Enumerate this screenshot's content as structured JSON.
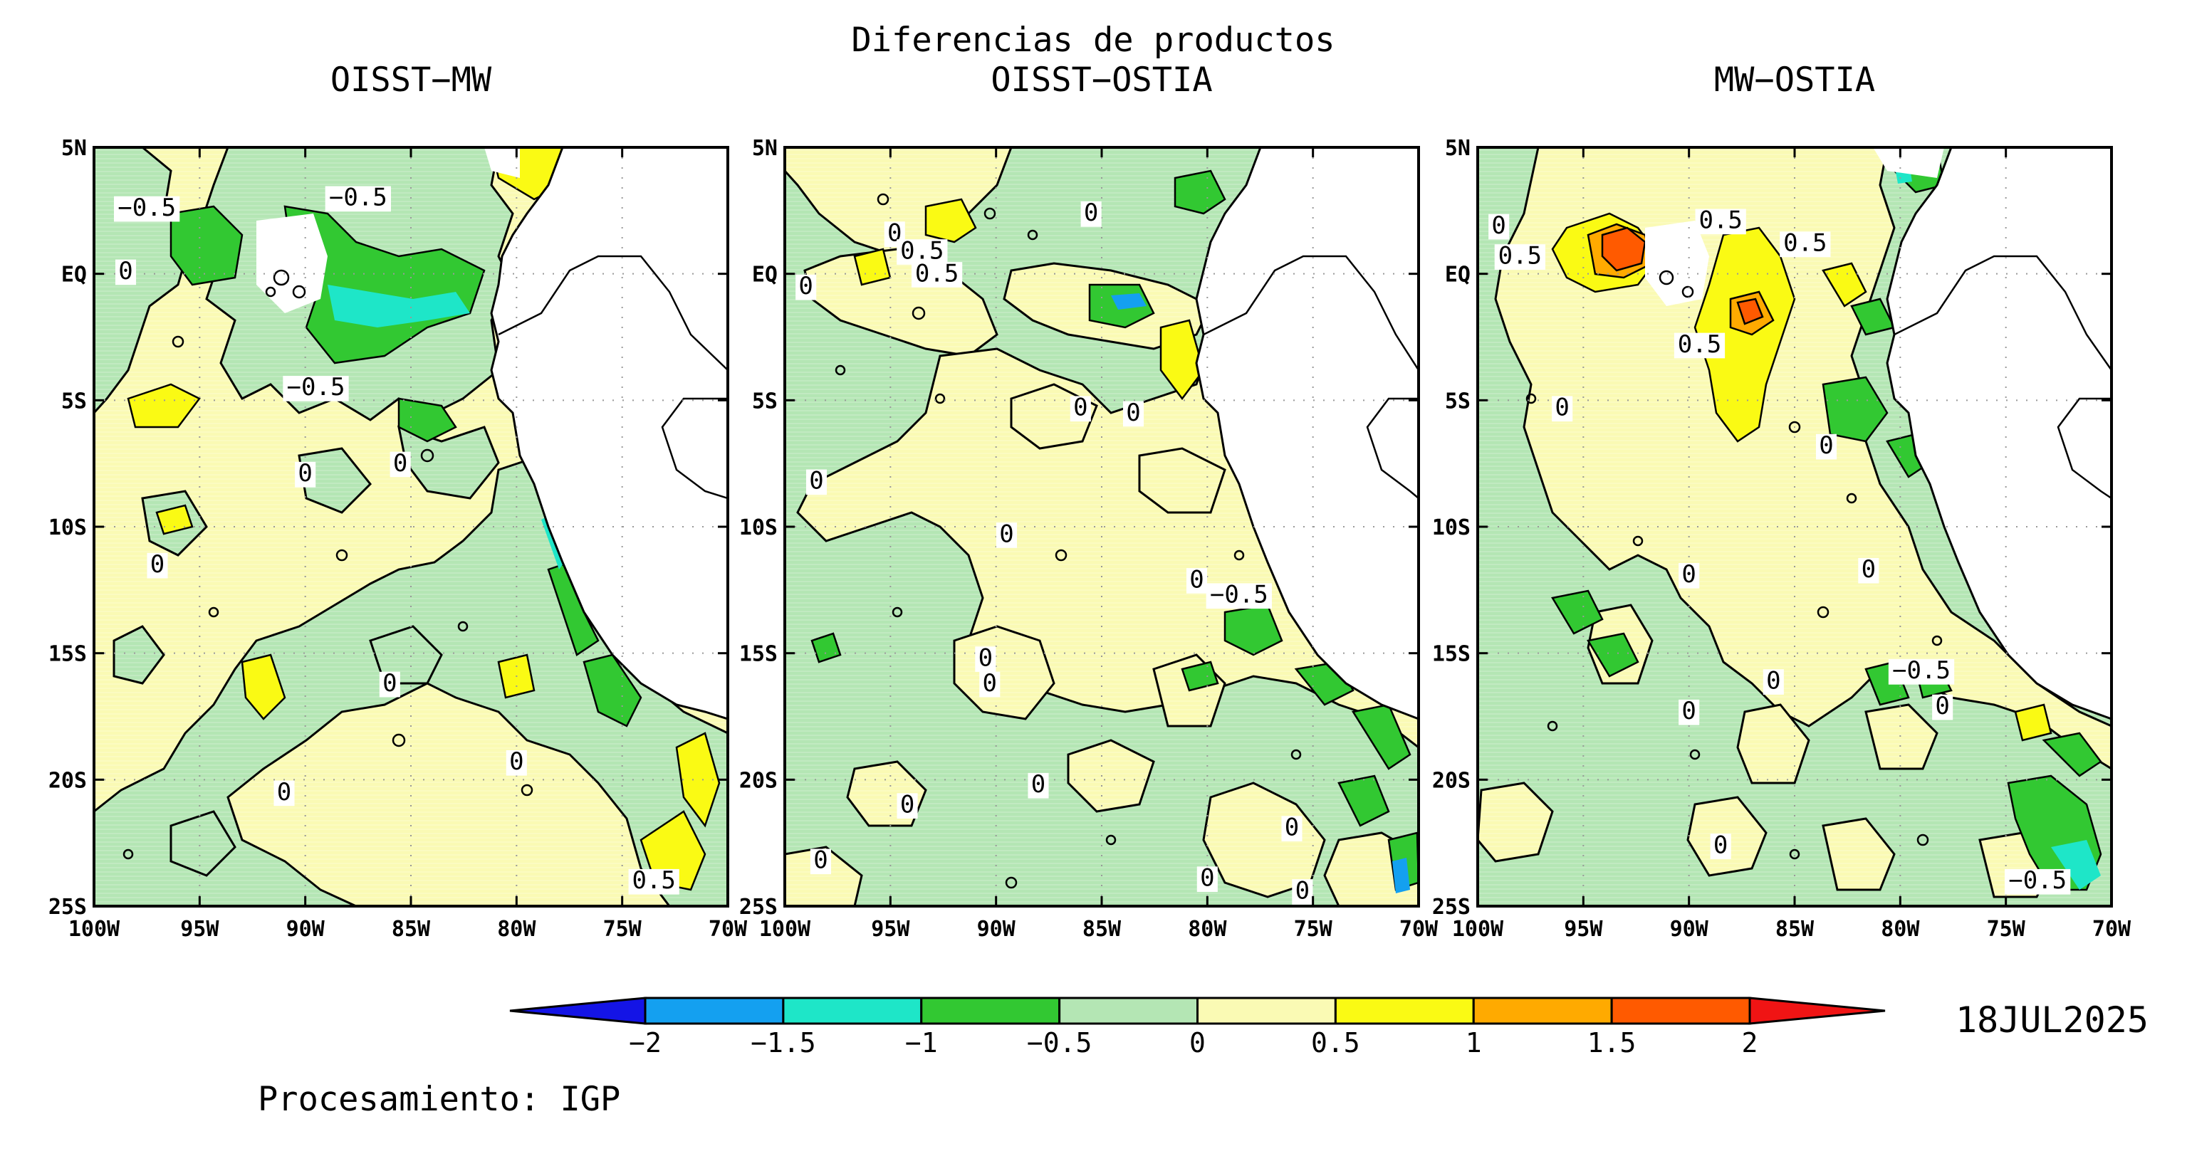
{
  "figure": {
    "title": "Diferencias de productos",
    "date": "18JUL2025",
    "credit": "Procesamiento: IGP"
  },
  "panels": [
    {
      "title": "OISST−MW",
      "contour_labels": [
        {
          "text": "−0.5",
          "lon": -97.5,
          "lat": 2.3
        },
        {
          "text": "−0.5",
          "lon": -87.5,
          "lat": 2.7
        },
        {
          "text": "0",
          "lon": -98.5,
          "lat": -0.2
        },
        {
          "text": "−0.5",
          "lon": -89.5,
          "lat": -4.8
        },
        {
          "text": "0",
          "lon": -85.5,
          "lat": -7.8
        },
        {
          "text": "0",
          "lon": -90,
          "lat": -8.2
        },
        {
          "text": "0",
          "lon": -97,
          "lat": -11.8
        },
        {
          "text": "0",
          "lon": -86,
          "lat": -16.5
        },
        {
          "text": "0",
          "lon": -80,
          "lat": -19.6
        },
        {
          "text": "0",
          "lon": -91,
          "lat": -20.8
        },
        {
          "text": "0.5",
          "lon": -73.5,
          "lat": -24.3
        }
      ]
    },
    {
      "title": "OISST−OSTIA",
      "contour_labels": [
        {
          "text": "0",
          "lon": -85.5,
          "lat": 2.1
        },
        {
          "text": "0",
          "lon": -94.8,
          "lat": 1.3
        },
        {
          "text": "0.5",
          "lon": -93.5,
          "lat": 0.6
        },
        {
          "text": "0.5",
          "lon": -92.8,
          "lat": -0.3
        },
        {
          "text": "0",
          "lon": -99,
          "lat": -0.8
        },
        {
          "text": "0",
          "lon": -86,
          "lat": -5.6
        },
        {
          "text": "0",
          "lon": -83.5,
          "lat": -5.8
        },
        {
          "text": "0",
          "lon": -98.5,
          "lat": -8.5
        },
        {
          "text": "0",
          "lon": -89.5,
          "lat": -10.6
        },
        {
          "text": "0",
          "lon": -80.5,
          "lat": -12.4
        },
        {
          "text": "−0.5",
          "lon": -78.5,
          "lat": -13.0
        },
        {
          "text": "0",
          "lon": -90.5,
          "lat": -15.5
        },
        {
          "text": "0",
          "lon": -90.3,
          "lat": -16.5
        },
        {
          "text": "0",
          "lon": -88,
          "lat": -20.5
        },
        {
          "text": "0",
          "lon": -94.2,
          "lat": -21.3
        },
        {
          "text": "0",
          "lon": -76,
          "lat": -22.2
        },
        {
          "text": "0",
          "lon": -98.3,
          "lat": -23.5
        },
        {
          "text": "0",
          "lon": -80,
          "lat": -24.2
        },
        {
          "text": "0",
          "lon": -75.5,
          "lat": -24.7
        }
      ]
    },
    {
      "title": "MW−OSTIA",
      "contour_labels": [
        {
          "text": "0",
          "lon": -99,
          "lat": 1.6
        },
        {
          "text": "0.5",
          "lon": -88.5,
          "lat": 1.8
        },
        {
          "text": "0.5",
          "lon": -84.5,
          "lat": 0.9
        },
        {
          "text": "0.5",
          "lon": -98,
          "lat": 0.4
        },
        {
          "text": "0.5",
          "lon": -89.5,
          "lat": -3.1
        },
        {
          "text": "0",
          "lon": -96,
          "lat": -5.6
        },
        {
          "text": "0",
          "lon": -83.5,
          "lat": -7.1
        },
        {
          "text": "0",
          "lon": -90,
          "lat": -12.2
        },
        {
          "text": "0",
          "lon": -81.5,
          "lat": -12.0
        },
        {
          "text": "−0.5",
          "lon": -79,
          "lat": -16.0
        },
        {
          "text": "0",
          "lon": -86,
          "lat": -16.4
        },
        {
          "text": "0",
          "lon": -78,
          "lat": -17.4
        },
        {
          "text": "0",
          "lon": -90,
          "lat": -17.6
        },
        {
          "text": "0",
          "lon": -88.5,
          "lat": -22.9
        },
        {
          "text": "−0.5",
          "lon": -73.5,
          "lat": -24.3
        }
      ]
    }
  ],
  "map": {
    "lon_range": [
      -100,
      -70
    ],
    "lat_range": [
      -25,
      5
    ],
    "x_ticks": [
      "100W",
      "95W",
      "90W",
      "85W",
      "80W",
      "75W",
      "70W"
    ],
    "y_ticks": [
      "5N",
      "EQ",
      "5S",
      "10S",
      "15S",
      "20S",
      "25S"
    ],
    "grid": "dotted"
  },
  "colorbar": {
    "levels": [
      "−2",
      "−1.5",
      "−1",
      "−0.5",
      "0",
      "0.5",
      "1",
      "1.5",
      "2"
    ],
    "colors": [
      "#1414e6",
      "#14a0f0",
      "#1ee6c8",
      "#32c832",
      "#b4e6b4",
      "#fafab4",
      "#fafa14",
      "#ffaa00",
      "#ff5a00",
      "#f01414"
    ]
  }
}
